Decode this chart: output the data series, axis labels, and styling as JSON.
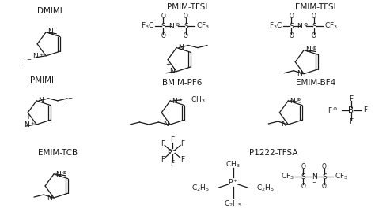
{
  "bg_color": "#ffffff",
  "labels": {
    "dmimi": "DMIMI",
    "pmimi": "PMIMI",
    "pmim_tfsi": "PMIM-TFSI",
    "bmim_pf6": "BMIM-PF6",
    "emim_tfsi": "EMIM-TFSI",
    "emim_bf4": "EMIM-BF4",
    "emim_tcb": "EMIM-TCB",
    "p1222_tfsa": "P1222-TFSA"
  },
  "font_size_label": 7.5,
  "font_size_struct": 6.5,
  "line_color": "#1a1a1a",
  "text_color": "#1a1a1a"
}
